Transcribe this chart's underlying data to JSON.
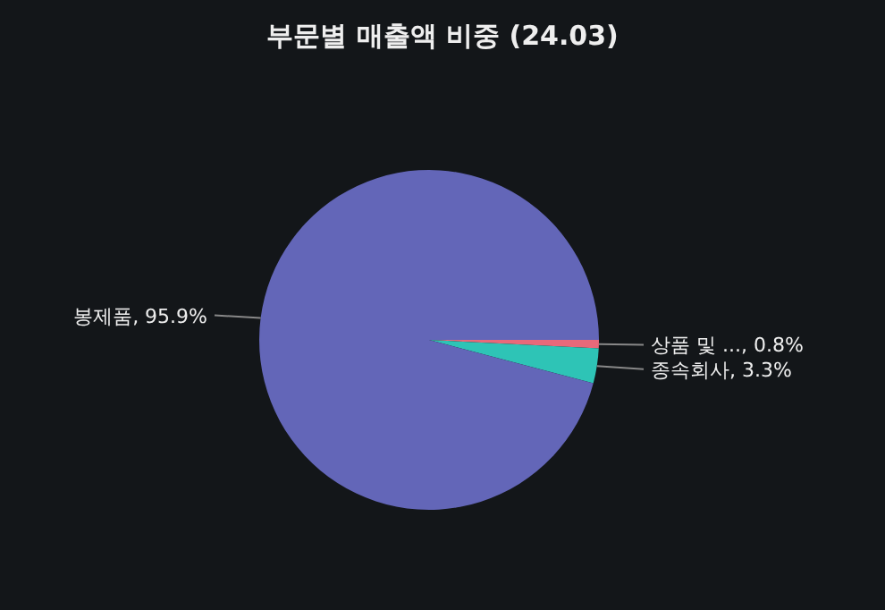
{
  "chart_data": {
    "type": "pie",
    "title": "부문별 매출액 비중 (24.03)",
    "categories": [
      "상품 및 ...",
      "종속회사",
      "봉제품"
    ],
    "values": [
      0.8,
      3.3,
      95.9
    ],
    "colors": [
      "#e8697a",
      "#2ec4b6",
      "#6366b8"
    ],
    "value_labels": [
      ", 0.8%",
      ", 3.3%",
      ", 95.9%"
    ]
  }
}
